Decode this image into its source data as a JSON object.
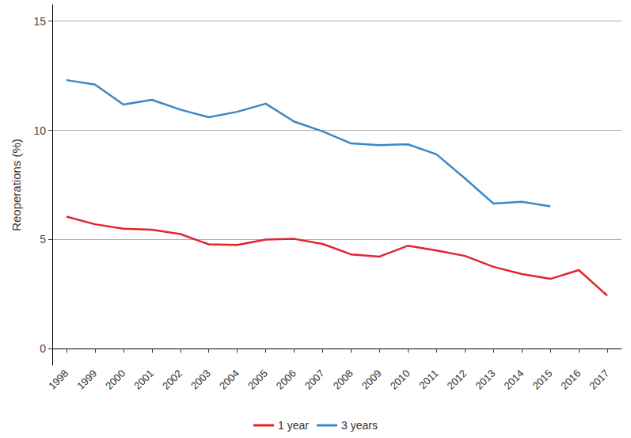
{
  "chart_data": {
    "type": "line",
    "y_label": "Reoperations (%)",
    "categories": [
      "1998",
      "1999",
      "2000",
      "2001",
      "2002",
      "2003",
      "2004",
      "2005",
      "2006",
      "2007",
      "2008",
      "2009",
      "2010",
      "2011",
      "2012",
      "2013",
      "2014",
      "2015",
      "2016",
      "2017"
    ],
    "series": [
      {
        "name": "1 year",
        "color": "#e3242b",
        "values": [
          6.05,
          5.7,
          5.5,
          5.45,
          5.25,
          4.78,
          4.75,
          5.0,
          5.03,
          4.8,
          4.32,
          4.22,
          4.72,
          4.5,
          4.25,
          3.75,
          3.42,
          3.2,
          3.6,
          2.43
        ]
      },
      {
        "name": "3 years",
        "color": "#3a87c8",
        "values": [
          12.3,
          12.1,
          11.18,
          11.4,
          10.95,
          10.6,
          10.85,
          11.22,
          10.4,
          9.95,
          9.4,
          9.32,
          9.36,
          8.9,
          7.8,
          6.65,
          6.73,
          6.52,
          null,
          null
        ]
      }
    ],
    "ylim": [
      -0.75,
      15.75
    ],
    "yticks": [
      0,
      5,
      10,
      15
    ],
    "grid": true,
    "legend": "bottom"
  }
}
